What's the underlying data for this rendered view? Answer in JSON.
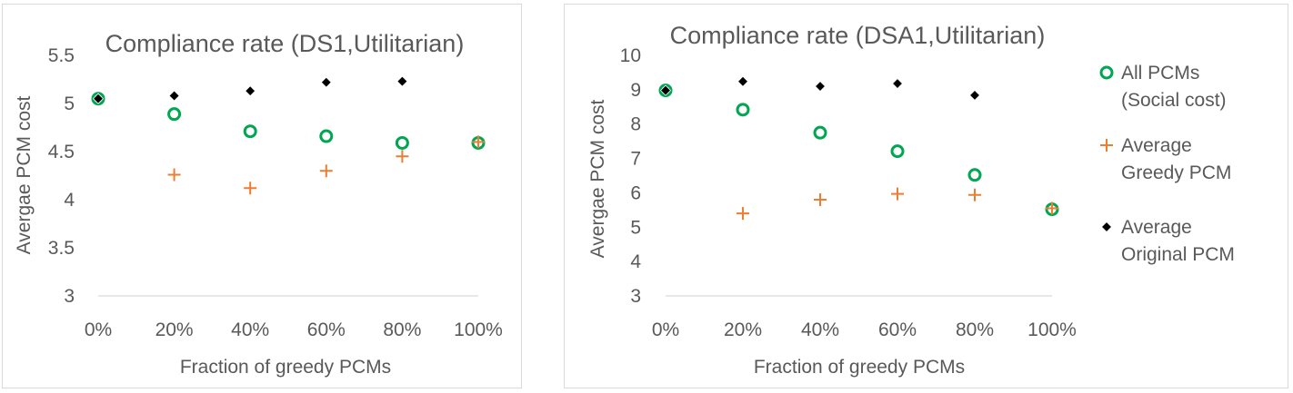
{
  "chart_data": [
    {
      "type": "scatter",
      "title": "Compliance rate (DS1,Utilitarian)",
      "xlabel": "Fraction of greedy PCMs",
      "ylabel": "Avergae PCM cost",
      "categories": [
        "0%",
        "20%",
        "40%",
        "60%",
        "80%",
        "100%"
      ],
      "ylim": [
        3,
        5.5
      ],
      "yticks": [
        "3",
        "3.5",
        "4",
        "4.5",
        "5",
        "5.5"
      ],
      "grid": false,
      "series": [
        {
          "name": "All PCMs (Social cost)",
          "marker": "circle",
          "color": "#00a651",
          "values": [
            5.05,
            4.89,
            4.71,
            4.66,
            4.59,
            4.59
          ]
        },
        {
          "name": "Average Greedy PCM",
          "marker": "plus",
          "color": "#ed7d31",
          "values": [
            null,
            4.26,
            4.12,
            4.3,
            4.45,
            4.6
          ]
        },
        {
          "name": "Average Original PCM",
          "marker": "diamond",
          "color": "#000000",
          "values": [
            5.05,
            5.08,
            5.13,
            5.22,
            5.23,
            null
          ]
        }
      ]
    },
    {
      "type": "scatter",
      "title": "Compliance rate (DSA1,Utilitarian)",
      "xlabel": "Fraction of greedy PCMs",
      "ylabel": "Avergae PCM cost",
      "categories": [
        "0%",
        "20%",
        "40%",
        "60%",
        "80%",
        "100%"
      ],
      "ylim": [
        3,
        10
      ],
      "yticks": [
        "3",
        "4",
        "5",
        "6",
        "7",
        "8",
        "9",
        "10"
      ],
      "grid": false,
      "legend_position": "right",
      "series": [
        {
          "name": "All PCMs (Social cost)",
          "marker": "circle",
          "color": "#00a651",
          "values": [
            8.98,
            8.42,
            7.75,
            7.21,
            6.52,
            5.52
          ]
        },
        {
          "name": "Average Greedy PCM",
          "marker": "plus",
          "color": "#ed7d31",
          "values": [
            null,
            5.4,
            5.8,
            5.97,
            5.94,
            5.55
          ]
        },
        {
          "name": "Average Original PCM",
          "marker": "diamond",
          "color": "#000000",
          "values": [
            8.98,
            9.24,
            9.1,
            9.18,
            8.84,
            null
          ]
        }
      ]
    }
  ],
  "legend": {
    "items": [
      {
        "line1": "All PCMs",
        "line2": "(Social cost)"
      },
      {
        "line1": "Average",
        "line2": "Greedy PCM"
      },
      {
        "line1": "Average",
        "line2": "Original PCM"
      }
    ]
  }
}
